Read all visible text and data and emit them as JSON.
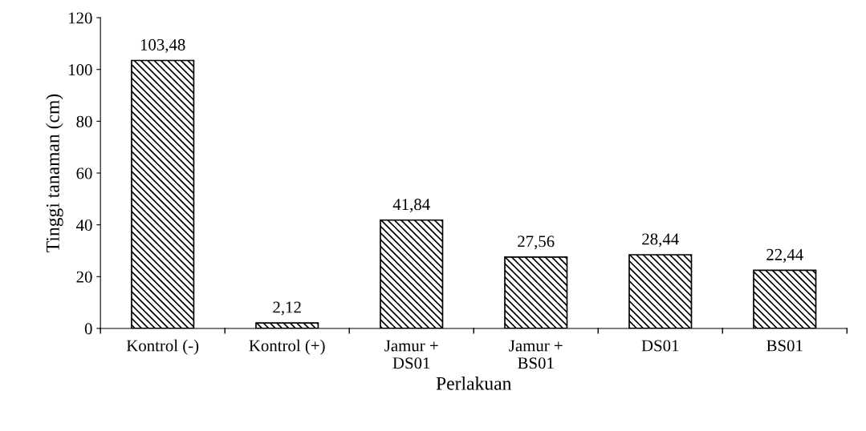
{
  "chart_data": {
    "type": "bar",
    "xlabel": "Perlakuan",
    "ylabel": "Tinggi tanaman (cm)",
    "categories": [
      "Kontrol (-)",
      "Kontrol (+)",
      "Jamur +\nDS01",
      "Jamur +\nBS01",
      "DS01",
      "BS01"
    ],
    "values": [
      103.48,
      2.12,
      41.84,
      27.56,
      28.44,
      22.44
    ],
    "value_labels": [
      "103,48",
      "2,12",
      "41,84",
      "27,56",
      "28,44",
      "22,44"
    ],
    "color": "#000000",
    "ylim": [
      0,
      120
    ],
    "yticks": [
      0,
      20,
      40,
      60,
      80,
      100,
      120
    ],
    "grid": false,
    "legend": false
  }
}
